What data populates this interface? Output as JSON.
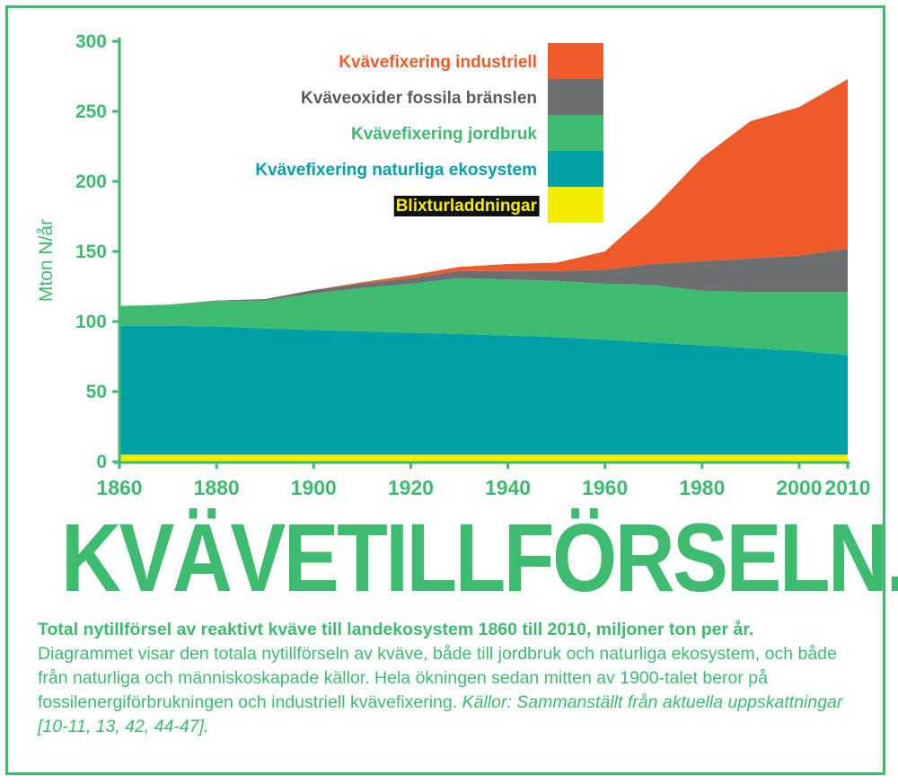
{
  "chart_data": {
    "type": "area",
    "stacked": true,
    "x": [
      1860,
      1870,
      1880,
      1890,
      1900,
      1910,
      1920,
      1930,
      1940,
      1950,
      1960,
      1970,
      1980,
      1990,
      2000,
      2010
    ],
    "xlim": [
      1860,
      2010
    ],
    "ylim": [
      0,
      300
    ],
    "x_ticks": [
      "1860",
      "1880",
      "1900",
      "1920",
      "1940",
      "1960",
      "1980",
      "2000",
      "2010"
    ],
    "y_ticks": [
      "0",
      "50",
      "100",
      "150",
      "200",
      "250",
      "300"
    ],
    "ylabel": "Mton N/år",
    "legend_position": "top-center",
    "series": [
      {
        "name": "Blixturladdningar",
        "color": "#f5ec00",
        "values": [
          5,
          5,
          5,
          5,
          5,
          5,
          5,
          5,
          5,
          5,
          5,
          5,
          5,
          5,
          5,
          5
        ]
      },
      {
        "name": "Kvävefixering naturliga ekosystem",
        "color": "#00a0a6",
        "values": [
          92,
          92,
          91.5,
          90,
          89,
          88,
          87,
          86,
          85,
          84,
          82,
          80,
          78,
          76,
          74,
          71
        ]
      },
      {
        "name": "Kvävefixering jordbruk",
        "color": "#3dbb6e",
        "values": [
          14,
          15,
          18,
          20,
          26,
          31,
          35,
          40,
          40,
          40,
          40,
          41,
          39,
          40,
          42,
          45
        ]
      },
      {
        "name": "Kväveoxider fossila bränslen",
        "color": "#6d6e70",
        "values": [
          0,
          0,
          0.5,
          1,
          2.5,
          3,
          4,
          5,
          6,
          7,
          10,
          15,
          21,
          24,
          26,
          31
        ]
      },
      {
        "name": "Kvävefixering industriell",
        "color": "#f05a28",
        "values": [
          0,
          0,
          0,
          0,
          0,
          1,
          2,
          3,
          5,
          6,
          13,
          40,
          74,
          98,
          106,
          121
        ]
      }
    ]
  },
  "title": "KVÄVETILLFÖRSELN.",
  "caption": {
    "lead": "Total nytillförsel av reaktivt kväve till landekosystem 1860 till 2010, miljoner ton per år.",
    "body": "Diagrammet visar den totala nytillförseln av kväve, både till jordbruk och naturliga ekosystem, och både från naturliga och människoskapade källor. Hela ökningen sedan mitten av 1900-talet beror på fossilenergiförbrukningen och industriell kvävefixering.",
    "source": "Källor: Sammanställt från aktuella uppskattningar [10-11, 13, 42, 44-47]."
  },
  "colors": {
    "accent": "#3dbb6e",
    "legend_text": [
      "#f05a28",
      "#5a5b5d",
      "#3dbb6e",
      "#00a0a6",
      "#f5ec00"
    ],
    "legend_text_bg_last": "#111111"
  }
}
